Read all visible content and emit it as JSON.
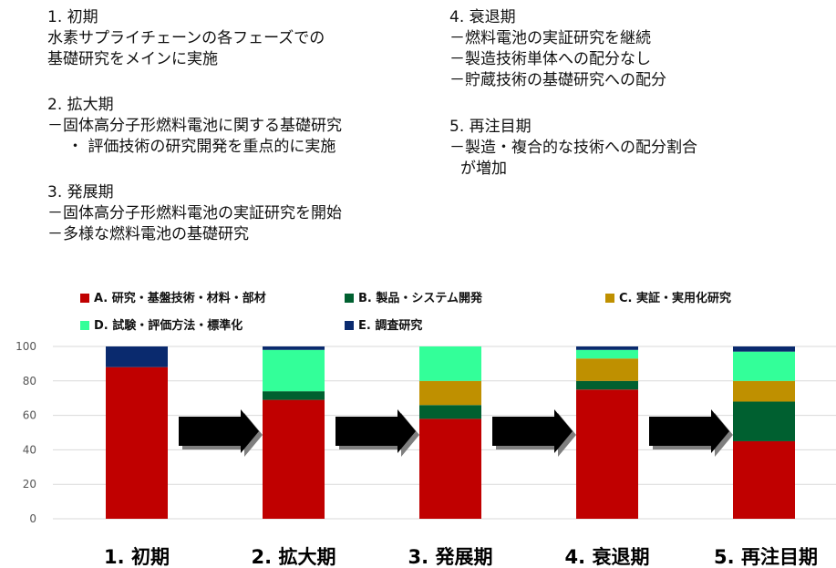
{
  "phases": [
    {
      "head": "1. 初期",
      "lines": [
        "水素サプライチェーンの各フェーズでの",
        "基礎研究をメインに実施"
      ]
    },
    {
      "head": "2. 拡大期",
      "lines": [
        "－固体高分子形燃料電池に関する基礎研究",
        "・ 評価技術の研究開発を重点的に実施"
      ]
    },
    {
      "head": "3. 発展期",
      "lines": [
        "－固体高分子形燃料電池の実証研究を開始",
        "－多様な燃料電池の基礎研究"
      ]
    },
    {
      "head": "4. 衰退期",
      "lines": [
        "－燃料電池の実証研究を継続",
        "－製造技術単体への配分なし",
        "－貯蔵技術の基礎研究への配分"
      ]
    },
    {
      "head": "5. 再注目期",
      "lines": [
        "－製造・複合的な技術への配分割合",
        "が増加"
      ]
    }
  ],
  "chart_data": {
    "type": "bar",
    "stacked": true,
    "categories": [
      "1. 初期",
      "2. 拡大期",
      "3. 発展期",
      "4. 衰退期",
      "5. 再注目期"
    ],
    "yticks": [
      "0",
      "20",
      "40",
      "60",
      "80",
      "100"
    ],
    "ylim": [
      0,
      100
    ],
    "grid": true,
    "legend_position": "top",
    "series": [
      {
        "name": "A. 研究・基盤技術・材料・部材",
        "color": "#c00000",
        "values": [
          88,
          69,
          58,
          75,
          45
        ]
      },
      {
        "name": "B. 製品・システム開発",
        "color": "#006030",
        "values": [
          0,
          5,
          8,
          5,
          23
        ]
      },
      {
        "name": "C. 実証・実用化研究",
        "color": "#bf9000",
        "values": [
          0,
          0,
          14,
          13,
          12
        ]
      },
      {
        "name": "D. 試験・評価方法・標準化",
        "color": "#33ff99",
        "values": [
          0,
          24,
          20,
          5,
          17
        ]
      },
      {
        "name": "E. 調査研究",
        "color": "#0a2a6e",
        "values": [
          12,
          2,
          0,
          2,
          3
        ]
      }
    ]
  }
}
